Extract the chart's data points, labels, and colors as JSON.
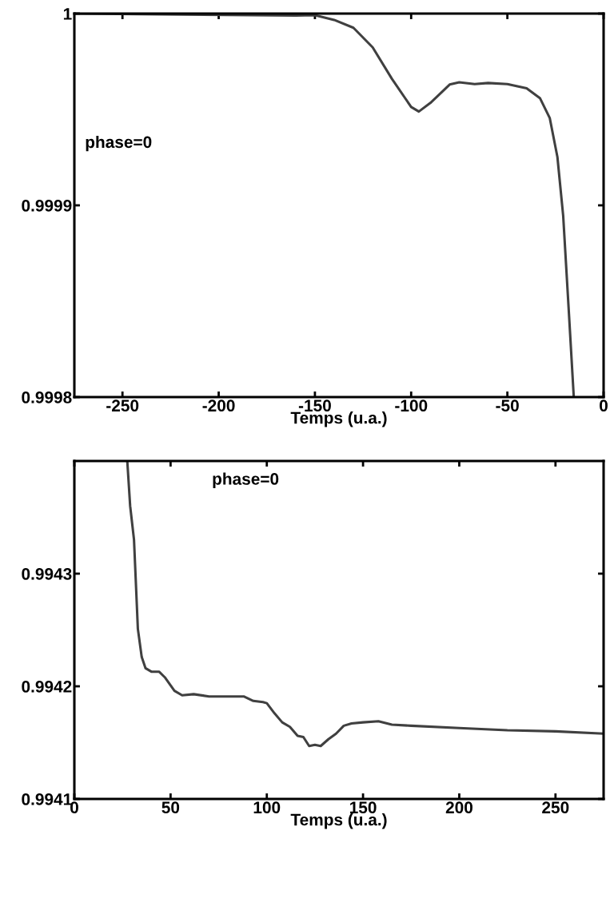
{
  "chart_data": [
    {
      "type": "line",
      "xlabel": "Temps (u.a.)",
      "annotations": [
        "phase=0"
      ],
      "xlim": [
        -275,
        0
      ],
      "ylim": [
        0.9998,
        1
      ],
      "xticks": [
        -250,
        -200,
        -150,
        -100,
        -50,
        0
      ],
      "yticks": [
        0.9998,
        0.9999,
        1
      ],
      "grid": false,
      "legend": false,
      "series": [
        {
          "color": "#404040",
          "x": [
            -275,
            -160,
            -150,
            -140,
            -130,
            -120,
            -110,
            -100,
            -96,
            -90,
            -80,
            -75,
            -67,
            -60,
            -50,
            -40,
            -33,
            -28,
            -24,
            -21,
            -18,
            -15.5
          ],
          "values": [
            1.0,
            0.999999,
            0.9999992,
            0.9999967,
            0.9999926,
            0.9999824,
            0.999966,
            0.9999513,
            0.9999489,
            0.9999534,
            0.999963,
            0.9999642,
            0.9999632,
            0.9999638,
            0.9999632,
            0.999961,
            0.9999558,
            0.9999456,
            0.9999252,
            0.9998945,
            0.9998434,
            0.9998
          ]
        }
      ]
    },
    {
      "type": "line",
      "xlabel": "Temps (u.a.)",
      "annotations": [
        "phase=0"
      ],
      "xlim": [
        0,
        275
      ],
      "ylim": [
        0.9941,
        0.9944
      ],
      "xticks": [
        0,
        50,
        100,
        150,
        200,
        250
      ],
      "yticks": [
        0.9941,
        0.9942,
        0.9943
      ],
      "grid": false,
      "legend": false,
      "series": [
        {
          "color": "#404040",
          "x": [
            27.5,
            29,
            31,
            33,
            35,
            37,
            40,
            44,
            47,
            52,
            56,
            62,
            70,
            80,
            88,
            93,
            98,
            100,
            104,
            108,
            112,
            116,
            119,
            122,
            125,
            128,
            132,
            136,
            140,
            144,
            150,
            158,
            165,
            175,
            200,
            225,
            250,
            275
          ],
          "values": [
            0.9944,
            0.99436,
            0.99433,
            0.994251,
            0.994226,
            0.994216,
            0.994213,
            0.994213,
            0.994208,
            0.994196,
            0.994192,
            0.994193,
            0.994191,
            0.994191,
            0.994191,
            0.994187,
            0.994186,
            0.994185,
            0.994176,
            0.994168,
            0.994164,
            0.994156,
            0.994155,
            0.994147,
            0.994148,
            0.994147,
            0.994153,
            0.994158,
            0.994165,
            0.994167,
            0.994168,
            0.994169,
            0.994166,
            0.994165,
            0.994163,
            0.994161,
            0.99416,
            0.994158
          ]
        }
      ]
    }
  ]
}
